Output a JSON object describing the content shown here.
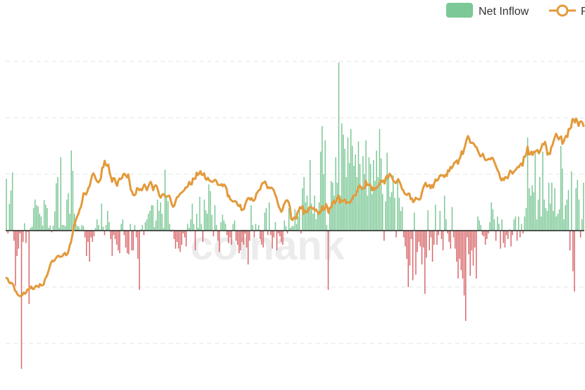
{
  "colors": {
    "inflow_positive": "#7cc896",
    "inflow_negative": "#d9696c",
    "price_line": "#e39a3b",
    "zero_line": "#222222",
    "legend_net_inflow": "#7cc896"
  },
  "watermark": "coinank",
  "chart_data": {
    "type": "bar",
    "grid": true,
    "legend_position": "top-right",
    "ylim": [
      -2.75,
      3.0
    ],
    "price_ylim": [
      0,
      100
    ],
    "series": [
      {
        "name": "Net Inflow",
        "type": "bar",
        "values": [
          0.92,
          -0.05,
          0.47,
          0.71,
          1.03,
          -0.18,
          -0.98,
          -0.45,
          -0.32,
          -0.05,
          -2.45,
          -0.2,
          0.13,
          -0.22,
          -0.02,
          -1.3,
          0.05,
          0.07,
          0.4,
          0.55,
          0.45,
          0.43,
          0.3,
          0.25,
          0.09,
          0.54,
          0.46,
          0.4,
          0.05,
          0.09,
          -0.03,
          0.09,
          0.34,
          0.84,
          0.95,
          0.05,
          1.3,
          0.1,
          0.1,
          0.08,
          0.55,
          0.66,
          0.3,
          1.42,
          1.06,
          0.3,
          0.12,
          0.08,
          0.07,
          0.02,
          0.1,
          0.08,
          -0.12,
          -0.45,
          -0.2,
          -0.55,
          -0.12,
          -0.2,
          -0.1,
          0.05,
          0.2,
          0.1,
          0.02,
          0.48,
          0.07,
          -0.08,
          0.1,
          0.35,
          0.15,
          -0.15,
          -0.45,
          -0.08,
          -0.15,
          -0.25,
          -0.35,
          -0.4,
          0.12,
          0.2,
          -0.08,
          -0.3,
          -0.4,
          -0.42,
          0.12,
          -0.35,
          -0.35,
          0.1,
          -0.12,
          -0.5,
          -1.05,
          0.02,
          0.1,
          -0.08,
          0.15,
          0.2,
          0.3,
          0.35,
          0.45,
          0.45,
          0.06,
          0.18,
          0.55,
          0.35,
          0.5,
          0.3,
          0.05,
          1.08,
          0.6,
          0.52,
          0.12,
          -0.02,
          0.02,
          -0.15,
          -0.32,
          -0.2,
          -0.32,
          -0.38,
          -0.25,
          -0.05,
          -0.12,
          -0.28,
          0.12,
          0.05,
          0.2,
          0.48,
          0.12,
          -0.35,
          0.3,
          0.05,
          0.6,
          0.12,
          -0.2,
          0.55,
          0.36,
          0.3,
          0.82,
          0.7,
          0.28,
          -0.1,
          0.45,
          0.1,
          -0.18,
          -0.38,
          0.15,
          0.28,
          0.18,
          0.12,
          -0.08,
          -0.22,
          -0.12,
          -0.25,
          0.12,
          0.18,
          -0.18,
          -0.25,
          -0.4,
          -0.35,
          -0.2,
          -0.25,
          -0.05,
          -0.3,
          -0.6,
          -0.18,
          0.45,
          0.1,
          -0.12,
          0.12,
          0.02,
          0.1,
          -0.15,
          -0.25,
          -0.3,
          0.32,
          0.4,
          -0.08,
          0.5,
          -0.08,
          -0.32,
          -0.12,
          0.15,
          -0.35,
          -0.05,
          -0.1,
          -0.2,
          -0.25,
          0.18,
          0.08,
          -0.05,
          0.4,
          0.05,
          0.08,
          0.08,
          0.38,
          0.12,
          0.25,
          0.38,
          -0.05,
          0.75,
          0.95,
          0.5,
          0.62,
          0.42,
          1.25,
          0.48,
          0.3,
          0.62,
          0.2,
          0.32,
          0.5,
          1.4,
          1.85,
          1.0,
          1.6,
          0.1,
          -1.05,
          0.35,
          0.88,
          0.85,
          0.62,
          1.3,
          0.85,
          2.98,
          0.62,
          1.9,
          1.7,
          1.45,
          0.95,
          1.65,
          1.2,
          1.8,
          1.5,
          1.15,
          1.35,
          0.95,
          1.58,
          1.18,
          0.75,
          1.32,
          1.0,
          1.6,
          0.62,
          1.3,
          1.18,
          0.65,
          1.25,
          0.88,
          1.42,
          0.95,
          1.8,
          1.28,
          0.65,
          -0.18,
          0.52,
          1.38,
          0.98,
          0.6,
          0.68,
          0.98,
          0.58,
          -0.12,
          0.92,
          0.58,
          0.35,
          0.42,
          -0.12,
          -0.28,
          -0.5,
          -1.0,
          -0.62,
          -0.15,
          -0.88,
          0.32,
          -0.78,
          -0.38,
          -0.2,
          -0.28,
          -0.6,
          -0.3,
          -1.12,
          -0.48,
          0.36,
          -0.35,
          -0.12,
          -0.55,
          -0.25,
          0.46,
          -0.25,
          -0.08,
          0.35,
          -0.15,
          -0.35,
          0.62,
          0.2,
          -0.05,
          -0.2,
          -0.32,
          0.42,
          -0.12,
          -0.32,
          -0.55,
          -0.85,
          -0.5,
          -0.7,
          -0.85,
          -1.15,
          -1.6,
          -0.12,
          -0.42,
          -0.8,
          -0.35,
          -0.62,
          -0.3,
          -0.85,
          0.25,
          0.18,
          0.1,
          -0.08,
          -0.1,
          -0.25,
          -0.15,
          -0.05,
          0.15,
          0.5,
          0.38,
          0.2,
          -0.18,
          0.25,
          0.12,
          -0.32,
          0.2,
          -0.22,
          -0.3,
          -0.08,
          -0.15,
          0.02,
          -0.28,
          -0.08,
          0.2,
          0.25,
          -0.18,
          0.25,
          -0.12,
          0.12,
          -0.05,
          0.25,
          0.4,
          1.65,
          0.75,
          0.62,
          0.8,
          0.68,
          1.38,
          0.2,
          0.55,
          0.95,
          0.25,
          1.4,
          0.55,
          0.4,
          0.35,
          0.85,
          0.48,
          0.85,
          0.35,
          0.75,
          0.25,
          0.3,
          0.38,
          1.5,
          1.1,
          0.2,
          0.45,
          0.55,
          0.72,
          -0.35,
          1.05,
          -0.72,
          -1.08,
          0.75,
          0.9,
          0.55,
          -0.12,
          0.2,
          0.85
        ]
      },
      {
        "name": "Price",
        "type": "line",
        "values": [
          17.9,
          17.7,
          16.7,
          16.3,
          16.5,
          16.2,
          15.4,
          14.1,
          13.8,
          13.0,
          12.7,
          12.5,
          12.6,
          12.9,
          13.6,
          13.2,
          13.7,
          14.5,
          14.4,
          14.9,
          15.4,
          14.6,
          14.6,
          15.2,
          15.6,
          15.4,
          15.2,
          16.1,
          15.7,
          15.7,
          15.9,
          17.5,
          18.1,
          18.9,
          20.1,
          21.4,
          22.5,
          23.0,
          22.8,
          23.2,
          23.8,
          24.3,
          24.5,
          24.1,
          24.2,
          24.3,
          24.9,
          25.3,
          24.6,
          24.9,
          25.9,
          27.5,
          28.5,
          30.4,
          32.5,
          33.9,
          35.2,
          36.1,
          36.9,
          38.2,
          38.9,
          40.6,
          42.9,
          42.9,
          42.5,
          43.3,
          44.5,
          45.0,
          46.8,
          48.2,
          48.8,
          48.1,
          47.0,
          46.4,
          46.1,
          46.6,
          47.3,
          50.4,
          50.6,
          52.5,
          51.3,
          51.0,
          51.4,
          49.1,
          47.7,
          46.3,
          47.4,
          47.3,
          46.0,
          45.1,
          46.6,
          47.3,
          47.1,
          47.4,
          48.5,
          48.7,
          48.1,
          47.6,
          48.5,
          46.4,
          44.0,
          43.4,
          42.4,
          42.3,
          42.7,
          44.4,
          44.3,
          43.8,
          44.1,
          43.8,
          44.8,
          45.5,
          44.8,
          43.8,
          44.8,
          45.7,
          46.3,
          45.4,
          43.8,
          44.9,
          45.3,
          44.9,
          43.6,
          42.2,
          41.6,
          42.3,
          42.7,
          42.4,
          41.9,
          42.0,
          42.1,
          42.2,
          41.1,
          39.6,
          38.9,
          39.2,
          40.5,
          41.7,
          41.8,
          42.4,
          42.9,
          43.1,
          43.5,
          43.8,
          44.6,
          44.6,
          45.1,
          46.3,
          45.6,
          45.5,
          47.3,
          47.1,
          47.2,
          49.0,
          48.3,
          48.7,
          49.4,
          48.4,
          48.3,
          48.8,
          47.2,
          46.9,
          47.5,
          46.8,
          46.5,
          46.3,
          46.3,
          46.7,
          46.9,
          46.4,
          45.4,
          45.4,
          45.3,
          45.6,
          45.0,
          45.5,
          45.1,
          44.3,
          42.0,
          42.2,
          41.1,
          40.8,
          40.5,
          40.5,
          40.6,
          40.3,
          39.4,
          39.1,
          39.5,
          37.9,
          38.1,
          38.2,
          39.6,
          40.6,
          41.4,
          41.5,
          41.0,
          41.5,
          40.8,
          40.7,
          41.3,
          42.8,
          43.3,
          43.8,
          44.0,
          45.3,
          46.0,
          46.0,
          46.4,
          45.5,
          44.4,
          44.7,
          44.4,
          44.6,
          44.3,
          43.8,
          42.6,
          41.8,
          40.3,
          38.9,
          38.3,
          37.4,
          38.0,
          39.5,
          40.2,
          40.8,
          40.8,
          40.2,
          38.7,
          35.3,
          35.0,
          35.6,
          35.8,
          35.4,
          37.2,
          37.8,
          38.8,
          38.4,
          39.1,
          36.8,
          37.9,
          37.4,
          37.3,
          38.3,
          38.9,
          38.7,
          38.3,
          38.6,
          37.8,
          38.1,
          37.5,
          36.8,
          37.1,
          37.8,
          39.1,
          38.0,
          38.2,
          39.7,
          38.8,
          37.1,
          38.6,
          38.7,
          39.8,
          40.7,
          39.9,
          40.6,
          41.5,
          42.3,
          40.0,
          41.0,
          40.5,
          40.7,
          41.1,
          40.0,
          40.3,
          40.2,
          40.1,
          40.5,
          41.2,
          42.2,
          42.3,
          42.4,
          43.7,
          44.7,
          45.2,
          44.8,
          44.1,
          44.4,
          44.5,
          46.6,
          45.3,
          45.4,
          45.5,
          45.1,
          43.8,
          44.6,
          44.0,
          44.4,
          44.6,
          45.1,
          45.6,
          46.7,
          46.3,
          46.7,
          45.8,
          47.5,
          48.1,
          47.4,
          48.7,
          48.3,
          47.6,
          46.6,
          46.3,
          45.9,
          46.5,
          47.1,
          46.3,
          45.5,
          44.2,
          43.8,
          42.9,
          42.6,
          42.4,
          42.8,
          42.8,
          41.2,
          41.4,
          40.3,
          40.7,
          41.6,
          41.3,
          41.2,
          41.0,
          41.4,
          43.0,
          44.4,
          45.3,
          46.0,
          44.9,
          45.1,
          45.4,
          44.4,
          45.3,
          44.6,
          45.9,
          47.0,
          46.6,
          46.9,
          47.8,
          48.3,
          48.1,
          48.2,
          47.7,
          48.4,
          48.0,
          49.7,
          49.4,
          50.7,
          50.3,
          51.0,
          51.9,
          52.1,
          52.6,
          51.6,
          52.9,
          53.6,
          55.3,
          54.5,
          55.9,
          57.3,
          58.8,
          59.8,
          59.1,
          57.8,
          57.8,
          57.8,
          57.4,
          56.7,
          56.5,
          55.5,
          54.6,
          53.8,
          54.0,
          54.6,
          53.5,
          52.7,
          52.7,
          52.9,
          53.1,
          52.9,
          53.4,
          53.3,
          52.4,
          51.5,
          50.5,
          49.6,
          49.0,
          47.4,
          46.7,
          47.3,
          46.8,
          47.7,
          47.6,
          47.3,
          48.5,
          49.6,
          49.3,
          48.7,
          49.3,
          49.7,
          50.1,
          50.7,
          50.6,
          51.4,
          51.7,
          51.0,
          53.7,
          53.7,
          54.6,
          56.7,
          54.4,
          54.4,
          55.2,
          54.2,
          55.2,
          55.1,
          55.5,
          55.7,
          54.7,
          55.3,
          56.3,
          57.5,
          57.3,
          58.1,
          56.7,
          54.3,
          54.7,
          54.5,
          56.5,
          57.1,
          58.5,
          59.6,
          60.5,
          59.6,
          58.8,
          59.4,
          59.7,
          57.5,
          58.1,
          59.3,
          59.9,
          59.5,
          61.9,
          61.9,
          62.4,
          64.8,
          64.7,
          63.8,
          65.0,
          64.1,
          62.8,
          64.0,
          64.2,
          63.8,
          62.8
        ]
      }
    ],
    "legend": [
      "Net Inflow",
      "P"
    ]
  }
}
